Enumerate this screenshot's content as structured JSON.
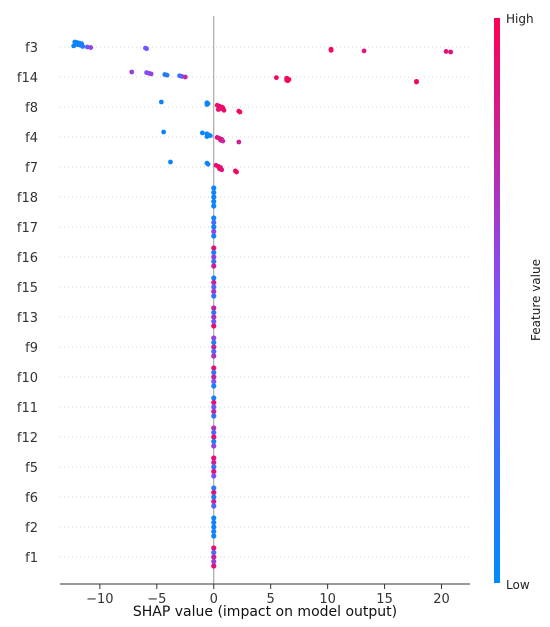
{
  "chart_data": {
    "type": "scatter",
    "subtype": "shap-beeswarm",
    "title": "",
    "xlabel": "SHAP value (impact on model output)",
    "ylabel": "",
    "xlim": [
      -13.5,
      22.5
    ],
    "xticks": [
      -10,
      -5,
      0,
      5,
      10,
      15,
      20
    ],
    "xtick_labels": [
      "−10",
      "−5",
      "0",
      "5",
      "10",
      "15",
      "20"
    ],
    "grid": false,
    "zero_line": true,
    "colorbar": {
      "label": "Feature value",
      "high_label": "High",
      "low_label": "Low",
      "low_color": "#008bfb",
      "high_color": "#ff0052"
    },
    "features": [
      {
        "name": "f3",
        "points": [
          {
            "x": -12.2,
            "v": 0.05
          },
          {
            "x": -12.0,
            "v": 0.05
          },
          {
            "x": -11.8,
            "v": 0.05
          },
          {
            "x": -11.6,
            "v": 0.1
          },
          {
            "x": -12.1,
            "v": 0.05
          },
          {
            "x": -11.9,
            "v": 0.05
          },
          {
            "x": -11.7,
            "v": 0.1
          },
          {
            "x": -12.3,
            "v": 0.05
          },
          {
            "x": -11.5,
            "v": 0.15
          },
          {
            "x": -11.1,
            "v": 0.4
          },
          {
            "x": -10.8,
            "v": 0.6
          },
          {
            "x": -6.0,
            "v": 0.45
          },
          {
            "x": -5.9,
            "v": 0.45
          },
          {
            "x": 10.3,
            "v": 0.95
          },
          {
            "x": 10.3,
            "v": 0.95
          },
          {
            "x": 10.3,
            "v": 0.95
          },
          {
            "x": 13.2,
            "v": 0.85
          },
          {
            "x": 20.4,
            "v": 0.9
          },
          {
            "x": 20.8,
            "v": 0.9
          }
        ]
      },
      {
        "name": "f14",
        "points": [
          {
            "x": -7.2,
            "v": 0.6
          },
          {
            "x": -5.9,
            "v": 0.5
          },
          {
            "x": -5.7,
            "v": 0.55
          },
          {
            "x": -5.5,
            "v": 0.6
          },
          {
            "x": -4.3,
            "v": 0.15
          },
          {
            "x": -4.1,
            "v": 0.15
          },
          {
            "x": -3.0,
            "v": 0.2
          },
          {
            "x": -2.8,
            "v": 0.4
          },
          {
            "x": -2.5,
            "v": 0.75
          },
          {
            "x": 5.5,
            "v": 0.95
          },
          {
            "x": 6.4,
            "v": 0.95
          },
          {
            "x": 6.5,
            "v": 0.95
          },
          {
            "x": 6.6,
            "v": 0.95
          },
          {
            "x": 6.4,
            "v": 0.95
          },
          {
            "x": 6.5,
            "v": 0.95
          },
          {
            "x": 17.8,
            "v": 0.95
          },
          {
            "x": 17.8,
            "v": 0.95
          }
        ]
      },
      {
        "name": "f8",
        "points": [
          {
            "x": -4.6,
            "v": 0.05
          },
          {
            "x": -0.6,
            "v": 0.05
          },
          {
            "x": -0.5,
            "v": 0.05
          },
          {
            "x": -0.6,
            "v": 0.05
          },
          {
            "x": 0.3,
            "v": 0.9
          },
          {
            "x": 0.5,
            "v": 0.95
          },
          {
            "x": 0.7,
            "v": 0.95
          },
          {
            "x": 0.8,
            "v": 0.95
          },
          {
            "x": 0.6,
            "v": 0.9
          },
          {
            "x": 0.4,
            "v": 0.9
          },
          {
            "x": 0.9,
            "v": 0.95
          },
          {
            "x": 2.2,
            "v": 0.95
          },
          {
            "x": 2.3,
            "v": 0.95
          }
        ]
      },
      {
        "name": "f4",
        "points": [
          {
            "x": -4.4,
            "v": 0.05
          },
          {
            "x": -1.0,
            "v": 0.05
          },
          {
            "x": -0.6,
            "v": 0.05
          },
          {
            "x": -0.5,
            "v": 0.05
          },
          {
            "x": -0.3,
            "v": 0.05
          },
          {
            "x": -0.6,
            "v": 0.05
          },
          {
            "x": 0.3,
            "v": 0.9
          },
          {
            "x": 0.5,
            "v": 0.85
          },
          {
            "x": 0.7,
            "v": 0.8
          },
          {
            "x": 0.6,
            "v": 0.9
          },
          {
            "x": 0.8,
            "v": 0.75
          },
          {
            "x": 2.2,
            "v": 0.8
          }
        ]
      },
      {
        "name": "f7",
        "points": [
          {
            "x": -3.8,
            "v": 0.05
          },
          {
            "x": -0.6,
            "v": 0.05
          },
          {
            "x": -0.5,
            "v": 0.05
          },
          {
            "x": 0.2,
            "v": 0.9
          },
          {
            "x": 0.4,
            "v": 0.95
          },
          {
            "x": 0.6,
            "v": 0.9
          },
          {
            "x": 0.5,
            "v": 0.95
          },
          {
            "x": 0.7,
            "v": 0.9
          },
          {
            "x": 1.9,
            "v": 0.95
          },
          {
            "x": 2.0,
            "v": 0.95
          }
        ]
      },
      {
        "name": "f18",
        "points": [
          {
            "x": 0.0,
            "v": 0.05
          },
          {
            "x": 0.0,
            "v": 0.05
          },
          {
            "x": 0.0,
            "v": 0.05
          },
          {
            "x": 0.0,
            "v": 0.05
          },
          {
            "x": 0.0,
            "v": 0.05
          }
        ]
      },
      {
        "name": "f17",
        "points": [
          {
            "x": 0.0,
            "v": 0.05
          },
          {
            "x": 0.0,
            "v": 0.3
          },
          {
            "x": 0.0,
            "v": 0.05
          },
          {
            "x": 0.0,
            "v": 0.6
          },
          {
            "x": 0.0,
            "v": 0.05
          }
        ]
      },
      {
        "name": "f16",
        "points": [
          {
            "x": 0.0,
            "v": 0.9
          },
          {
            "x": 0.0,
            "v": 0.1
          },
          {
            "x": 0.0,
            "v": 0.6
          },
          {
            "x": 0.0,
            "v": 0.2
          },
          {
            "x": 0.0,
            "v": 0.8
          }
        ]
      },
      {
        "name": "f15",
        "points": [
          {
            "x": 0.0,
            "v": 0.1
          },
          {
            "x": 0.0,
            "v": 0.8
          },
          {
            "x": 0.0,
            "v": 0.3
          },
          {
            "x": 0.0,
            "v": 0.7
          },
          {
            "x": 0.0,
            "v": 0.2
          }
        ]
      },
      {
        "name": "f13",
        "points": [
          {
            "x": 0.0,
            "v": 0.8
          },
          {
            "x": 0.0,
            "v": 0.2
          },
          {
            "x": 0.0,
            "v": 0.7
          },
          {
            "x": 0.0,
            "v": 0.4
          },
          {
            "x": 0.0,
            "v": 0.9
          }
        ]
      },
      {
        "name": "f9",
        "points": [
          {
            "x": 0.0,
            "v": 0.6
          },
          {
            "x": 0.0,
            "v": 0.1
          },
          {
            "x": 0.0,
            "v": 0.8
          },
          {
            "x": 0.0,
            "v": 0.3
          },
          {
            "x": 0.0,
            "v": 0.7
          }
        ]
      },
      {
        "name": "f10",
        "points": [
          {
            "x": 0.0,
            "v": 0.9
          },
          {
            "x": 0.0,
            "v": 0.2
          },
          {
            "x": 0.0,
            "v": 0.8
          },
          {
            "x": 0.0,
            "v": 0.5
          },
          {
            "x": 0.0,
            "v": 0.1
          }
        ]
      },
      {
        "name": "f11",
        "points": [
          {
            "x": 0.0,
            "v": 0.1
          },
          {
            "x": 0.0,
            "v": 0.9
          },
          {
            "x": 0.0,
            "v": 0.4
          },
          {
            "x": 0.0,
            "v": 0.8
          },
          {
            "x": 0.0,
            "v": 0.2
          }
        ]
      },
      {
        "name": "f12",
        "points": [
          {
            "x": 0.0,
            "v": 0.7
          },
          {
            "x": 0.0,
            "v": 0.3
          },
          {
            "x": 0.0,
            "v": 0.9
          },
          {
            "x": 0.0,
            "v": 0.1
          },
          {
            "x": 0.0,
            "v": 0.6
          }
        ]
      },
      {
        "name": "f5",
        "points": [
          {
            "x": 0.0,
            "v": 0.9
          },
          {
            "x": 0.0,
            "v": 0.8
          },
          {
            "x": 0.0,
            "v": 0.2
          },
          {
            "x": 0.0,
            "v": 0.9
          },
          {
            "x": 0.0,
            "v": 0.5
          }
        ]
      },
      {
        "name": "f6",
        "points": [
          {
            "x": 0.0,
            "v": 0.2
          },
          {
            "x": 0.0,
            "v": 0.9
          },
          {
            "x": 0.0,
            "v": 0.1
          },
          {
            "x": 0.0,
            "v": 0.8
          },
          {
            "x": 0.0,
            "v": 0.3
          }
        ]
      },
      {
        "name": "f2",
        "points": [
          {
            "x": 0.0,
            "v": 0.05
          },
          {
            "x": 0.0,
            "v": 0.1
          },
          {
            "x": 0.0,
            "v": 0.05
          },
          {
            "x": 0.0,
            "v": 0.1
          },
          {
            "x": 0.0,
            "v": 0.05
          }
        ]
      },
      {
        "name": "f1",
        "points": [
          {
            "x": 0.0,
            "v": 0.9
          },
          {
            "x": 0.0,
            "v": 0.3
          },
          {
            "x": 0.0,
            "v": 0.8
          },
          {
            "x": 0.0,
            "v": 0.6
          },
          {
            "x": 0.0,
            "v": 0.9
          }
        ]
      }
    ]
  }
}
